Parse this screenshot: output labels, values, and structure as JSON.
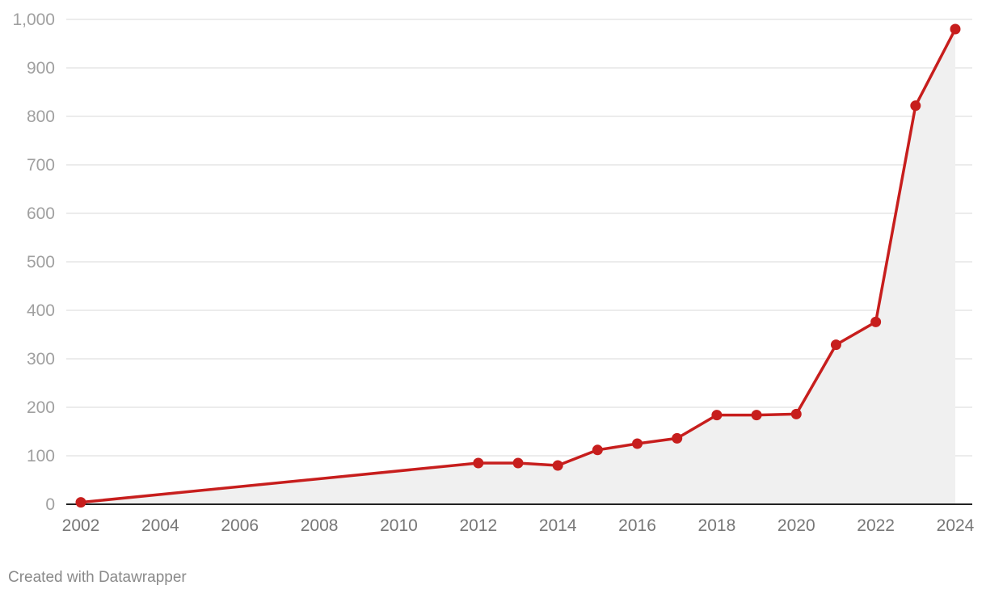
{
  "chart_data": {
    "type": "area",
    "title": "",
    "xlabel": "",
    "ylabel": "",
    "xlim": [
      2002,
      2024
    ],
    "ylim": [
      0,
      1000
    ],
    "grid": true,
    "legend": "none",
    "y_ticks": [
      0,
      100,
      200,
      300,
      400,
      500,
      600,
      700,
      800,
      900,
      1000
    ],
    "y_tick_labels": [
      "0",
      "100",
      "200",
      "300",
      "400",
      "500",
      "600",
      "700",
      "800",
      "900",
      "1,000"
    ],
    "x_ticks": [
      2002,
      2004,
      2006,
      2008,
      2010,
      2012,
      2014,
      2016,
      2018,
      2020,
      2022,
      2024
    ],
    "x_tick_labels": [
      "2002",
      "2004",
      "2006",
      "2008",
      "2010",
      "2012",
      "2014",
      "2016",
      "2018",
      "2020",
      "2022",
      "2024"
    ],
    "series": [
      {
        "x": [
          2002,
          2012,
          2013,
          2014,
          2015,
          2016,
          2017,
          2018,
          2019,
          2020,
          2021,
          2022,
          2023,
          2024
        ],
        "values": [
          4,
          85,
          85,
          80,
          112,
          125,
          136,
          184,
          184,
          186,
          329,
          376,
          822,
          980
        ],
        "color": "#c71e1d"
      }
    ],
    "area_color": "#f0f0f0",
    "grid_color": "#e5e5e5",
    "axis_color": "#222222"
  },
  "footer": {
    "credit": "Created with Datawrapper"
  }
}
